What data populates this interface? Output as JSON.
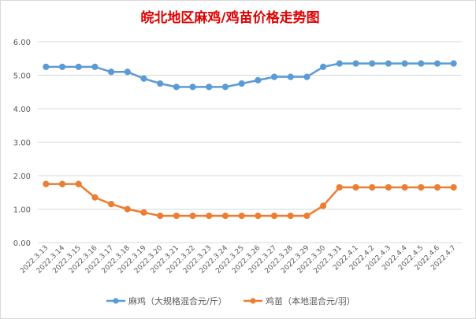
{
  "chart_data": {
    "type": "line",
    "title": "皖北地区麻鸡/鸡苗价格走势图",
    "title_color": "#e00000",
    "categories": [
      "2022.3.13",
      "2022.3.14",
      "2022.3.15",
      "2022.3.16",
      "2022.3.17",
      "2022.3.18",
      "2022.3.19",
      "2022.3.20",
      "2022.3.21",
      "2022.3.22",
      "2022.3.23",
      "2022.3.24",
      "2022.3.25",
      "2022.3.26",
      "2022.3.27",
      "2022.3.28",
      "2022.3.29",
      "2022.3.30",
      "2022.3.31",
      "2022.4.1",
      "2022.4.2",
      "2022.4.3",
      "2022.4.4",
      "2022.4.5",
      "2022.4.6",
      "2022.4.7"
    ],
    "series": [
      {
        "name": "麻鸡（大规格混合元/斤）",
        "color": "#5b9bd5",
        "values": [
          5.25,
          5.25,
          5.25,
          5.25,
          5.1,
          5.1,
          4.9,
          4.75,
          4.65,
          4.65,
          4.65,
          4.65,
          4.75,
          4.85,
          4.95,
          4.95,
          4.95,
          5.25,
          5.35,
          5.35,
          5.35,
          5.35,
          5.35,
          5.35,
          5.35,
          5.35
        ]
      },
      {
        "name": "鸡苗（本地混合元/羽）",
        "color": "#ed7d31",
        "values": [
          1.75,
          1.75,
          1.75,
          1.35,
          1.15,
          1.0,
          0.9,
          0.8,
          0.8,
          0.8,
          0.8,
          0.8,
          0.8,
          0.8,
          0.8,
          0.8,
          0.8,
          1.1,
          1.65,
          1.65,
          1.65,
          1.65,
          1.65,
          1.65,
          1.65,
          1.65
        ]
      }
    ],
    "y_ticks": [
      "0.00",
      "1.00",
      "2.00",
      "3.00",
      "4.00",
      "5.00",
      "6.00"
    ],
    "ylim": [
      0,
      6
    ],
    "grid": true,
    "legend_position": "bottom"
  }
}
